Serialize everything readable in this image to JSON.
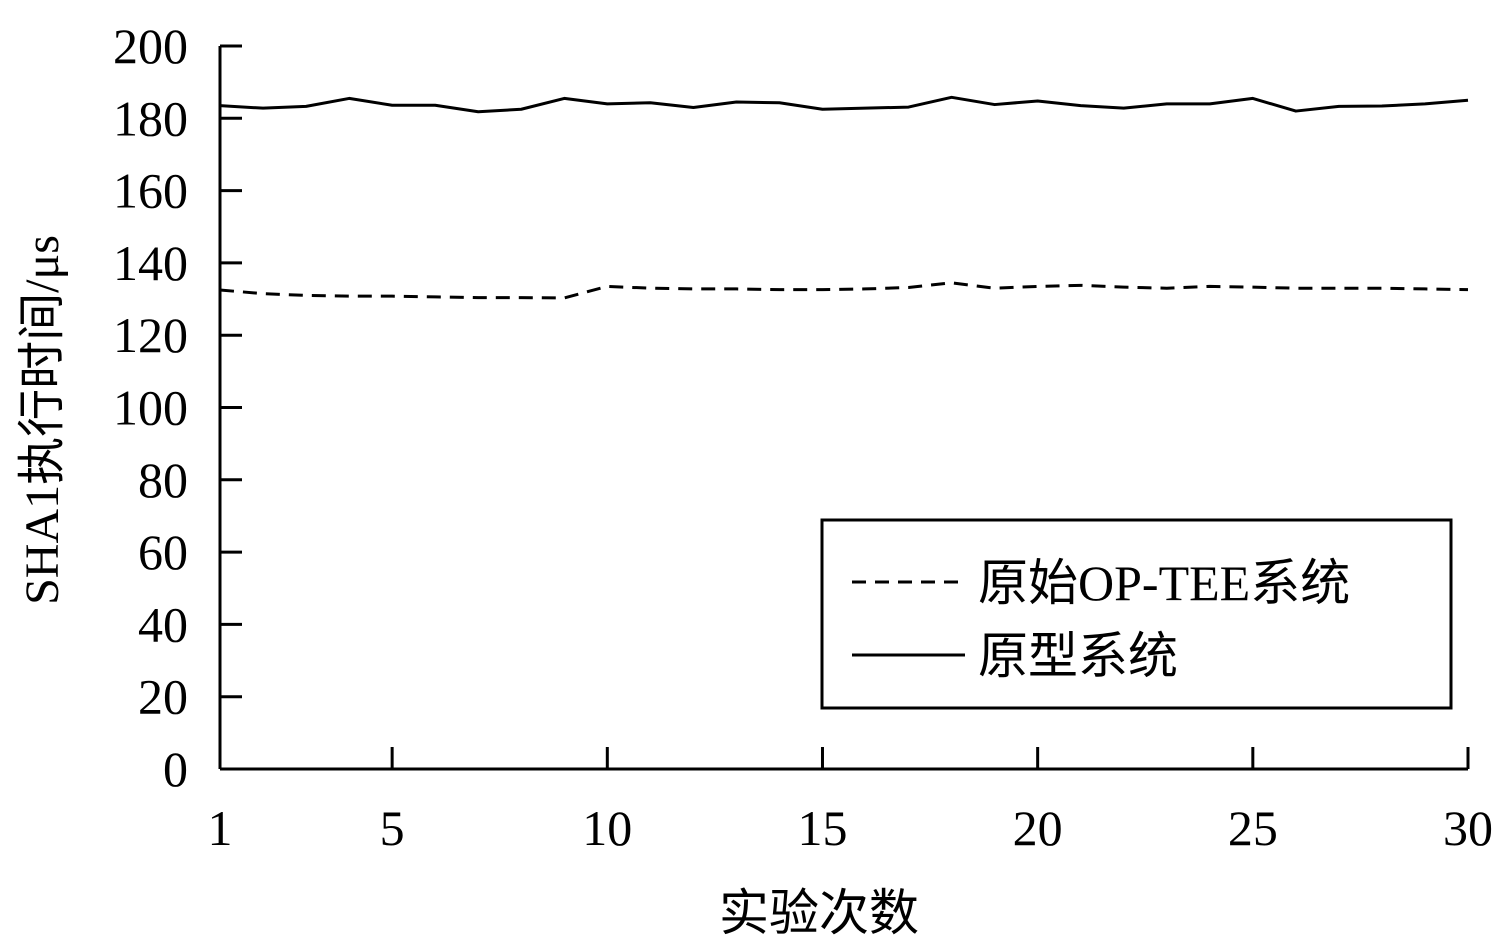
{
  "chart_data": {
    "type": "line",
    "xlabel": "实验次数",
    "ylabel": "SHA1执行时间/μs",
    "xlim": [
      1,
      30
    ],
    "ylim": [
      0,
      200
    ],
    "x_ticks": [
      1,
      5,
      10,
      15,
      20,
      25,
      30
    ],
    "y_ticks": [
      0,
      20,
      40,
      60,
      80,
      100,
      120,
      140,
      160,
      180,
      200
    ],
    "grid": false,
    "legend_position": "bottom-right",
    "x": [
      1,
      2,
      3,
      4,
      5,
      6,
      7,
      8,
      9,
      10,
      11,
      12,
      13,
      14,
      15,
      16,
      17,
      18,
      19,
      20,
      21,
      22,
      23,
      24,
      25,
      26,
      27,
      28,
      29,
      30
    ],
    "series": [
      {
        "name": "原始OP-TEE系统",
        "style": "dashed",
        "color": "#000000",
        "values": [
          132.5,
          131.5,
          131,
          130.8,
          130.8,
          130.6,
          130.4,
          130.4,
          130.3,
          133.5,
          133,
          132.8,
          132.8,
          132.6,
          132.6,
          132.8,
          133.2,
          134.5,
          133,
          133.5,
          133.8,
          133.3,
          133,
          133.5,
          133.3,
          133,
          133,
          133,
          132.8,
          132.6
        ]
      },
      {
        "name": "原型系统",
        "style": "solid",
        "color": "#000000",
        "values": [
          183.5,
          182.8,
          183.3,
          185.5,
          183.6,
          183.6,
          181.8,
          182.5,
          185.5,
          184,
          184.3,
          183,
          184.5,
          184.3,
          182.5,
          182.8,
          183.1,
          185.8,
          183.8,
          184.8,
          183.5,
          182.8,
          184,
          184,
          185.5,
          182,
          183.3,
          183.4,
          184,
          185
        ]
      }
    ]
  }
}
